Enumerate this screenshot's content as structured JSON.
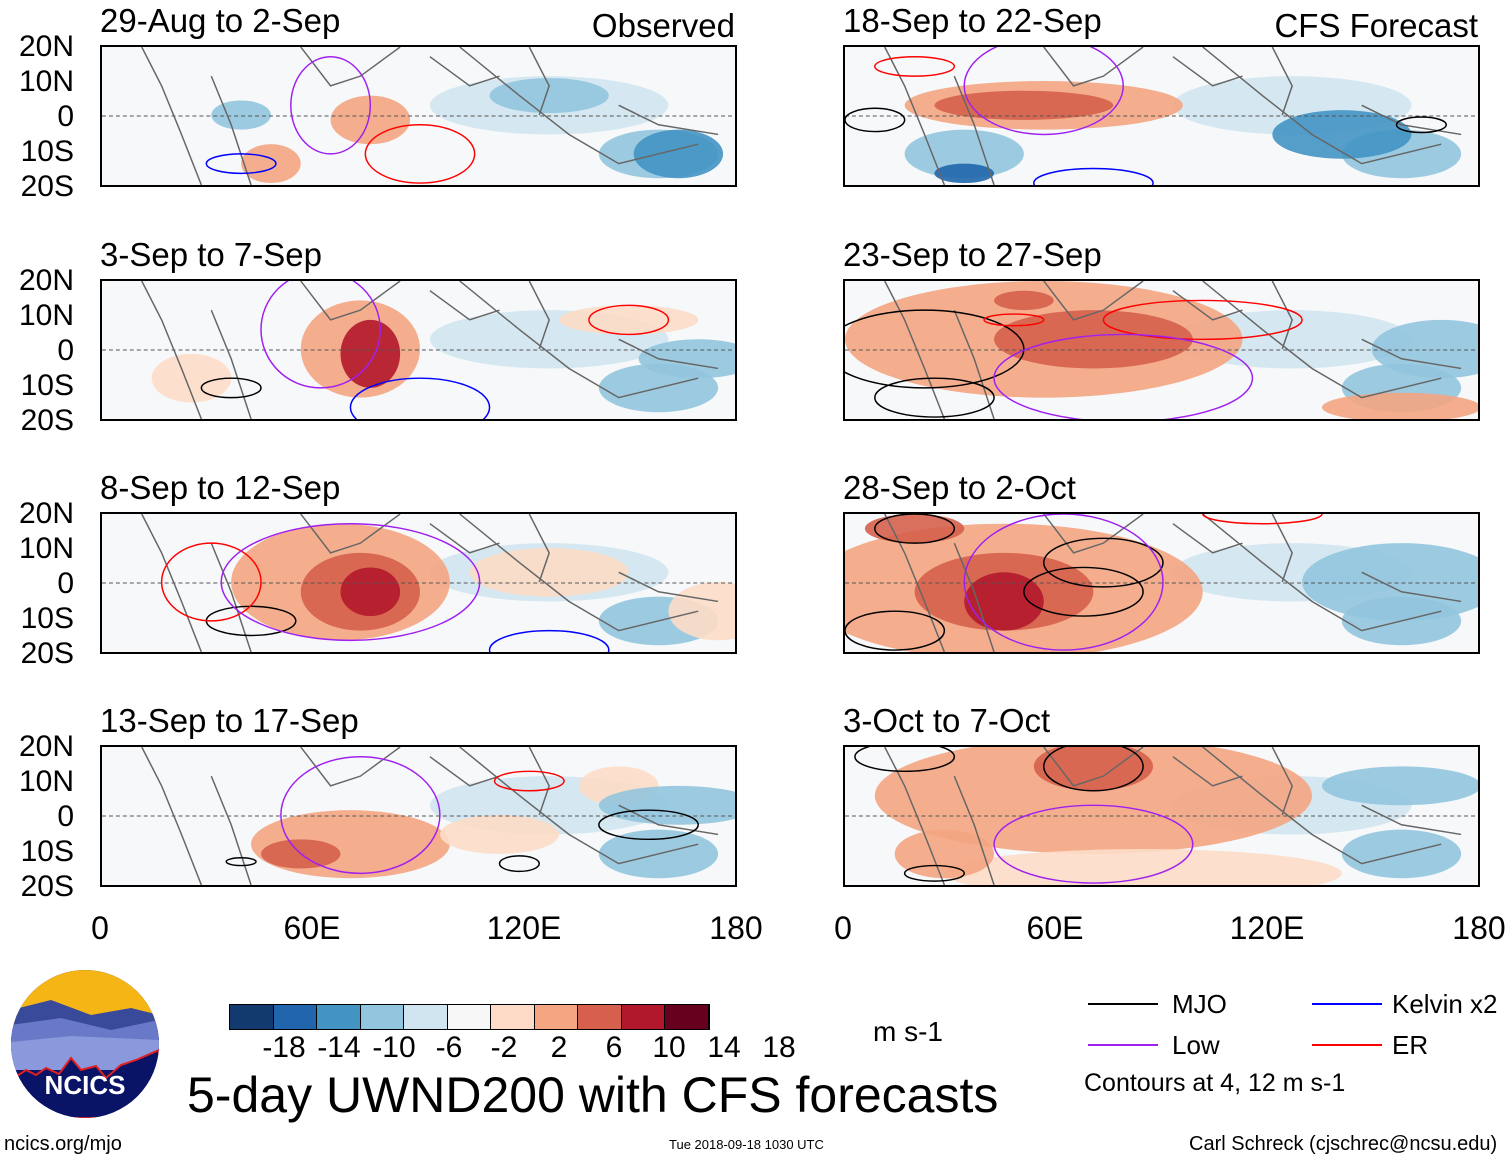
{
  "panels": [
    {
      "title": "29-Aug to 2-Sep",
      "tag": "Observed"
    },
    {
      "title": "3-Sep to 7-Sep"
    },
    {
      "title": "8-Sep to 12-Sep"
    },
    {
      "title": "13-Sep to 17-Sep"
    },
    {
      "title": "18-Sep to 22-Sep",
      "tag": "CFS Forecast"
    },
    {
      "title": "23-Sep to 27-Sep"
    },
    {
      "title": "28-Sep to 2-Oct"
    },
    {
      "title": "3-Oct to 7-Oct"
    }
  ],
  "lat_labels": [
    "20N",
    "10N",
    "0",
    "10S",
    "20S"
  ],
  "lon_labels": [
    "0",
    "60E",
    "120E",
    "180"
  ],
  "colorbar": {
    "colors": [
      "#133a6e",
      "#2166ac",
      "#4393c3",
      "#92c5de",
      "#d1e5f0",
      "#f7f7f7",
      "#fddbc7",
      "#f4a582",
      "#d6604d",
      "#b2182b",
      "#67001f"
    ],
    "labels": [
      "-18",
      "-14",
      "-10",
      "-6",
      "-2",
      "2",
      "6",
      "10",
      "14",
      "18"
    ],
    "units": "m s-1"
  },
  "legend": {
    "items": [
      {
        "label": "MJO",
        "color": "#000000"
      },
      {
        "label": "Low",
        "color": "#a020f0"
      },
      {
        "label": "Kelvin x2",
        "color": "#0000ff"
      },
      {
        "label": "ER",
        "color": "#ff0000"
      }
    ],
    "note": "Contours at 4, 12 m s-1"
  },
  "title": "5-day UWND200 with CFS forecasts",
  "logo_text": "NCICS",
  "website": "ncics.org/mjo",
  "timestamp": "Tue 2018-09-18 1030 UTC",
  "credit": "Carl Schreck (cjschrec@ncsu.edu)"
}
